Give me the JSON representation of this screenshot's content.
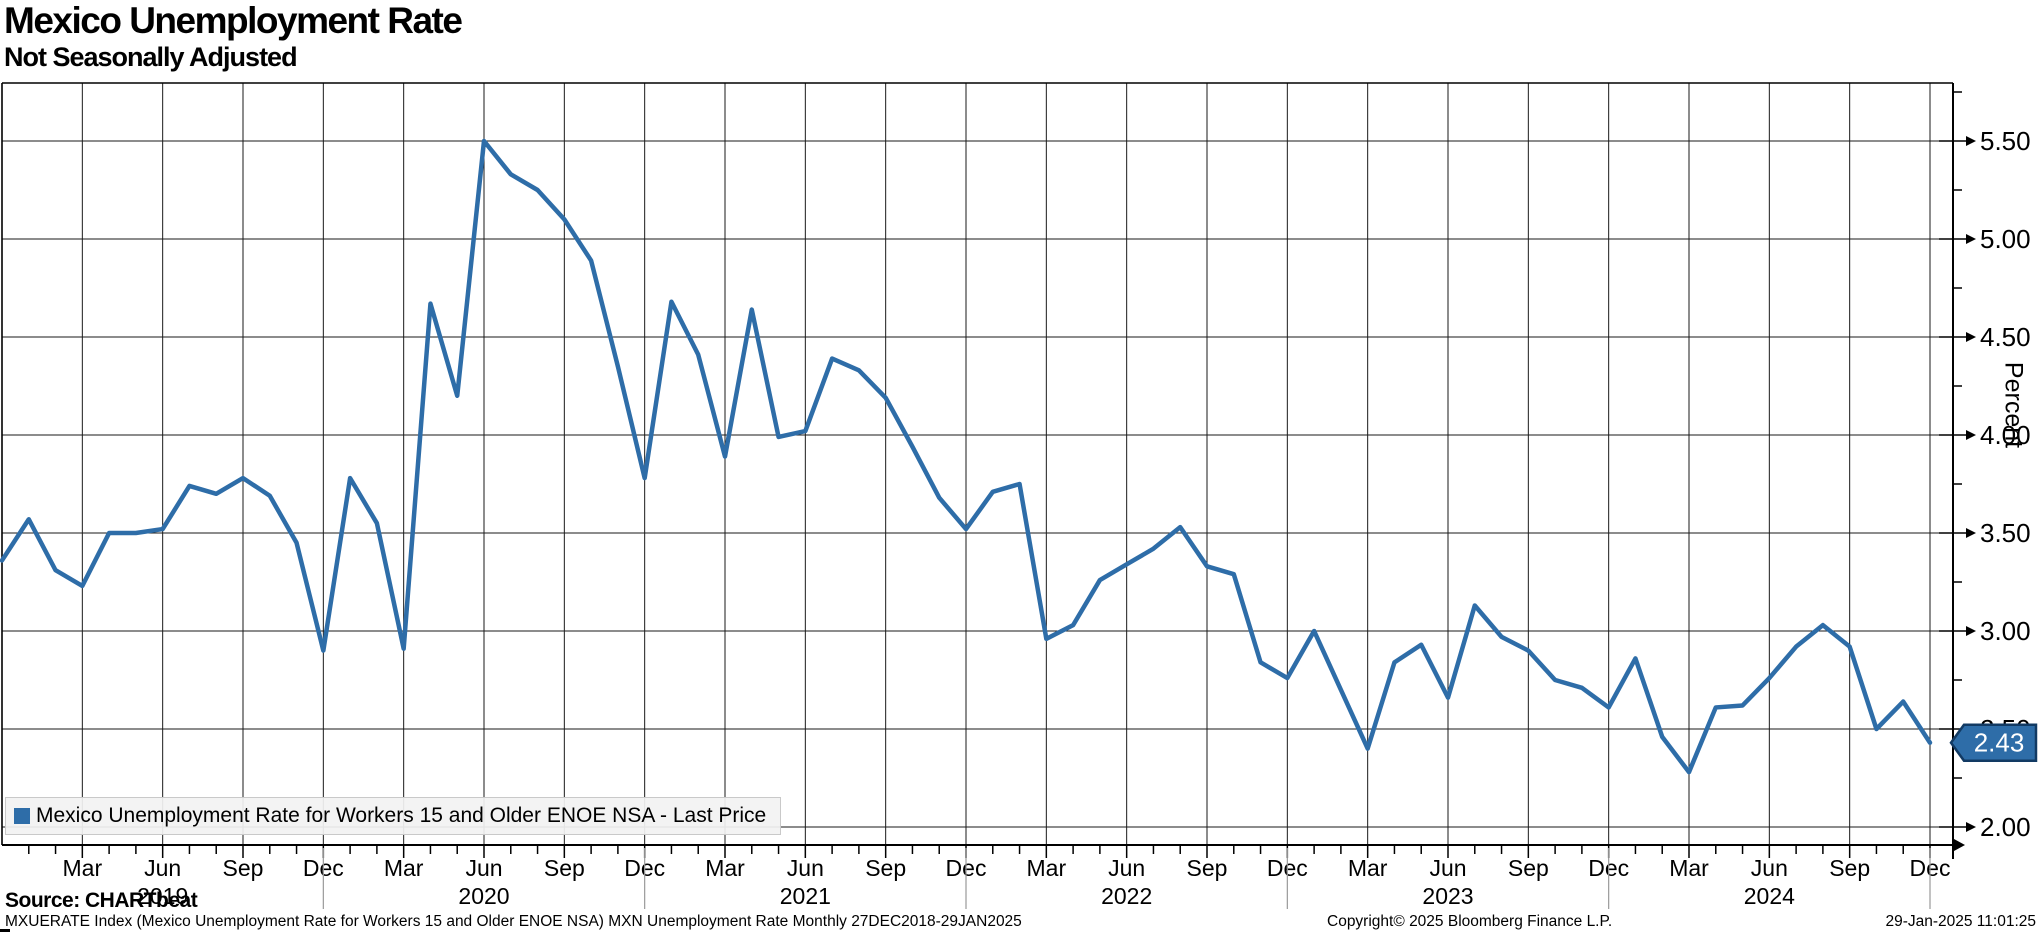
{
  "header": {
    "title": "Mexico Unemployment Rate",
    "subtitle": "Not Seasonally Adjusted"
  },
  "legend": {
    "label": "Mexico Unemployment Rate for Workers 15 and Older ENOE NSA - Last Price",
    "marker_color": "#2e6da8"
  },
  "footer": {
    "source": "Source: CHARTbeat",
    "fineprint": "MXUERATE Index (Mexico Unemployment Rate for Workers 15 and Older ENOE NSA) MXN Unemployment Rate  Monthly 27DEC2018-29JAN2025",
    "copyright": "Copyright© 2025 Bloomberg Finance L.P.",
    "timestamp": "29-Jan-2025 11:01:25"
  },
  "chart_data": {
    "type": "line",
    "title": "Mexico Unemployment Rate",
    "subtitle": "Not Seasonally Adjusted",
    "ylabel": "Percent",
    "ylim": [
      1.9,
      5.8
    ],
    "grid": true,
    "legend_position": "bottom-left",
    "frequency": "monthly",
    "last_price_label": "2.43",
    "line_color": "#2e6da8",
    "badge_border_color": "#123a63",
    "y_tick_labels": [
      "5.50",
      "5.00",
      "4.50",
      "4.00",
      "3.50",
      "3.00",
      "2.50",
      "2.00"
    ],
    "x_monthly": [
      "Dec 2018",
      "Jan 2019",
      "Feb 2019",
      "Mar 2019",
      "Apr 2019",
      "May 2019",
      "Jun 2019",
      "Jul 2019",
      "Aug 2019",
      "Sep 2019",
      "Oct 2019",
      "Nov 2019",
      "Dec 2019",
      "Jan 2020",
      "Feb 2020",
      "Mar 2020",
      "Apr 2020",
      "May 2020",
      "Jun 2020",
      "Jul 2020",
      "Aug 2020",
      "Sep 2020",
      "Oct 2020",
      "Nov 2020",
      "Dec 2020",
      "Jan 2021",
      "Feb 2021",
      "Mar 2021",
      "Apr 2021",
      "May 2021",
      "Jun 2021",
      "Jul 2021",
      "Aug 2021",
      "Sep 2021",
      "Oct 2021",
      "Nov 2021",
      "Dec 2021",
      "Jan 2022",
      "Feb 2022",
      "Mar 2022",
      "Apr 2022",
      "May 2022",
      "Jun 2022",
      "Jul 2022",
      "Aug 2022",
      "Sep 2022",
      "Oct 2022",
      "Nov 2022",
      "Dec 2022",
      "Jan 2023",
      "Feb 2023",
      "Mar 2023",
      "Apr 2023",
      "May 2023",
      "Jun 2023",
      "Jul 2023",
      "Aug 2023",
      "Sep 2023",
      "Oct 2023",
      "Nov 2023",
      "Dec 2023",
      "Jan 2024",
      "Feb 2024",
      "Mar 2024",
      "Apr 2024",
      "May 2024",
      "Jun 2024",
      "Jul 2024",
      "Aug 2024",
      "Sep 2024",
      "Oct 2024",
      "Nov 2024",
      "Dec 2024"
    ],
    "series": [
      {
        "name": "Mexico Unemployment Rate for Workers 15 and Older ENOE NSA - Last Price",
        "values": [
          3.36,
          3.57,
          3.31,
          3.23,
          3.5,
          3.5,
          3.52,
          3.74,
          3.7,
          3.78,
          3.69,
          3.45,
          2.9,
          3.78,
          3.55,
          2.91,
          4.67,
          4.2,
          5.5,
          5.33,
          5.25,
          5.1,
          4.89,
          4.35,
          3.78,
          4.68,
          4.41,
          3.89,
          4.64,
          3.99,
          4.02,
          4.39,
          4.33,
          4.19,
          3.94,
          3.68,
          3.52,
          3.71,
          3.75,
          2.96,
          3.03,
          3.26,
          3.34,
          3.42,
          3.53,
          3.33,
          3.29,
          2.84,
          2.76,
          3.0,
          2.7,
          2.4,
          2.84,
          2.93,
          2.66,
          3.13,
          2.97,
          2.9,
          2.75,
          2.71,
          2.61,
          2.86,
          2.46,
          2.28,
          2.61,
          2.62,
          2.76,
          2.92,
          3.03,
          2.92,
          2.5,
          2.64,
          2.43
        ]
      }
    ]
  }
}
